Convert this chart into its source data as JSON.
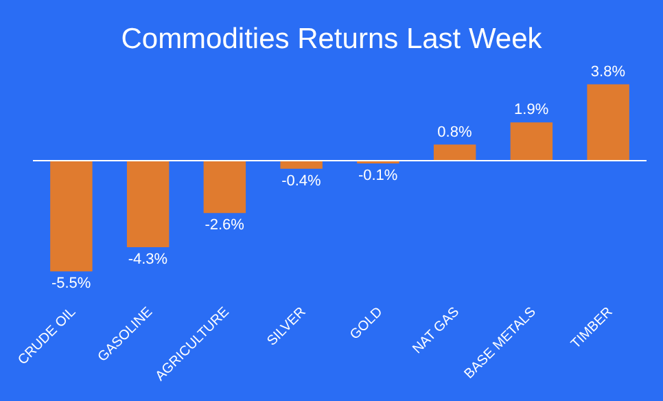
{
  "chart_data": {
    "type": "bar",
    "title": "Commodities Returns Last Week",
    "categories": [
      "CRUDE OIL",
      "GASOLINE",
      "AGRICULTURE",
      "SILVER",
      "GOLD",
      "NAT GAS",
      "BASE METALS",
      "TIMBER"
    ],
    "values": [
      -5.5,
      -4.3,
      -2.6,
      -0.4,
      -0.1,
      0.8,
      1.9,
      3.8
    ],
    "value_labels": [
      "-5.5%",
      "-4.3%",
      "-2.6%",
      "-0.4%",
      "-0.1%",
      "0.8%",
      "1.9%",
      "3.8%"
    ],
    "color": "#e07b2f",
    "grid": false,
    "legend": false
  }
}
